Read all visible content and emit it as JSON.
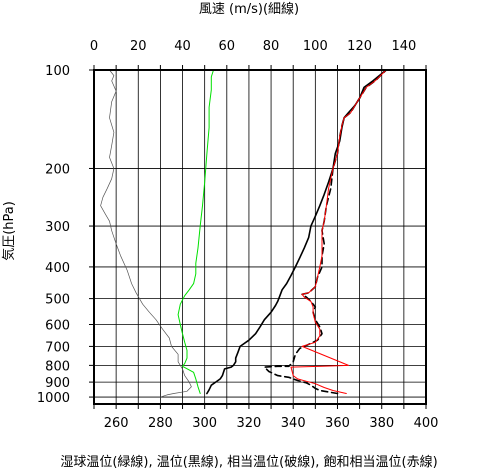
{
  "chart_data": {
    "type": "line",
    "top_axis_title": "風速 (m/s)(細線)",
    "left_axis_title": "気圧(hPa)",
    "bottom_axis_title": "湿球温位(緑線), 温位(黒線), 相当温位(破線), 飽和相当温位(赤線)",
    "x_bottom": {
      "min": 250,
      "max": 400,
      "ticks": [
        260,
        280,
        300,
        320,
        340,
        360,
        380,
        400
      ]
    },
    "x_top": {
      "min": 0,
      "max": 150,
      "ticks": [
        0,
        20,
        40,
        60,
        80,
        100,
        120,
        140
      ]
    },
    "y": {
      "scale": "log",
      "min": 100,
      "max": 1050,
      "ticks": [
        100,
        200,
        300,
        400,
        500,
        600,
        700,
        800,
        900,
        1000
      ]
    },
    "grid": true,
    "colors": {
      "wind": "#555555",
      "wet_bulb": "#00e000",
      "theta": "#000000",
      "theta_e": "#000000",
      "theta_es": "#ff0000"
    },
    "series": [
      {
        "key": "wind",
        "axis": "top",
        "style": "thin",
        "points": [
          [
            30,
            1000
          ],
          [
            33,
            985
          ],
          [
            36,
            975
          ],
          [
            42,
            960
          ],
          [
            44,
            930
          ],
          [
            43,
            900
          ],
          [
            41,
            860
          ],
          [
            40,
            820
          ],
          [
            38,
            780
          ],
          [
            38,
            740
          ],
          [
            35,
            700
          ],
          [
            34,
            660
          ],
          [
            31,
            620
          ],
          [
            28,
            580
          ],
          [
            25,
            550
          ],
          [
            22,
            520
          ],
          [
            19,
            480
          ],
          [
            17,
            450
          ],
          [
            15,
            410
          ],
          [
            12,
            370
          ],
          [
            10,
            340
          ],
          [
            8,
            310
          ],
          [
            7,
            290
          ],
          [
            5,
            275
          ],
          [
            3,
            260
          ],
          [
            4,
            245
          ],
          [
            6,
            230
          ],
          [
            8,
            215
          ],
          [
            9,
            200
          ],
          [
            7,
            185
          ],
          [
            8,
            170
          ],
          [
            9,
            155
          ],
          [
            7,
            140
          ],
          [
            8,
            125
          ],
          [
            10,
            116
          ],
          [
            8,
            108
          ],
          [
            9,
            104
          ],
          [
            7,
            100
          ]
        ]
      },
      {
        "key": "wet_bulb",
        "axis": "bottom",
        "style": "solid",
        "points": [
          [
            298,
            975
          ],
          [
            297,
            930
          ],
          [
            296,
            880
          ],
          [
            295,
            840
          ],
          [
            290,
            805
          ],
          [
            291,
            790
          ],
          [
            292,
            760
          ],
          [
            292,
            720
          ],
          [
            291,
            680
          ],
          [
            290,
            640
          ],
          [
            289,
            600
          ],
          [
            288,
            560
          ],
          [
            289,
            520
          ],
          [
            291,
            490
          ],
          [
            293,
            470
          ],
          [
            295,
            450
          ],
          [
            296,
            420
          ],
          [
            296,
            390
          ],
          [
            297,
            350
          ],
          [
            298,
            300
          ],
          [
            299,
            260
          ],
          [
            300,
            220
          ],
          [
            301,
            180
          ],
          [
            302,
            150
          ],
          [
            302,
            130
          ],
          [
            303,
            115
          ],
          [
            303,
            105
          ],
          [
            304,
            100
          ]
        ]
      },
      {
        "key": "theta",
        "axis": "bottom",
        "style": "solid",
        "points": [
          [
            301,
            975
          ],
          [
            302,
            950
          ],
          [
            303,
            920
          ],
          [
            305,
            900
          ],
          [
            307,
            880
          ],
          [
            308,
            860
          ],
          [
            309,
            820
          ],
          [
            312,
            810
          ],
          [
            313,
            800
          ],
          [
            314,
            780
          ],
          [
            314,
            760
          ],
          [
            315,
            730
          ],
          [
            316,
            700
          ],
          [
            320,
            670
          ],
          [
            323,
            640
          ],
          [
            325,
            610
          ],
          [
            327,
            580
          ],
          [
            330,
            550
          ],
          [
            332,
            525
          ],
          [
            333,
            510
          ],
          [
            334,
            490
          ],
          [
            335,
            470
          ],
          [
            337,
            450
          ],
          [
            339,
            425
          ],
          [
            341,
            400
          ],
          [
            343,
            375
          ],
          [
            345,
            350
          ],
          [
            347,
            325
          ],
          [
            348,
            300
          ],
          [
            350,
            280
          ],
          [
            352,
            260
          ],
          [
            354,
            240
          ],
          [
            356,
            220
          ],
          [
            358,
            200
          ],
          [
            359,
            180
          ],
          [
            361,
            165
          ],
          [
            362,
            150
          ],
          [
            363,
            140
          ],
          [
            365,
            135
          ],
          [
            368,
            128
          ],
          [
            370,
            122
          ],
          [
            372,
            113
          ],
          [
            376,
            108
          ],
          [
            382,
            100
          ]
        ]
      },
      {
        "key": "theta_e",
        "axis": "bottom",
        "style": "dashed",
        "points": [
          [
            360,
            975
          ],
          [
            352,
            955
          ],
          [
            350,
            940
          ],
          [
            348,
            920
          ],
          [
            346,
            905
          ],
          [
            342,
            890
          ],
          [
            338,
            870
          ],
          [
            333,
            860
          ],
          [
            329,
            835
          ],
          [
            327,
            810
          ],
          [
            333,
            805
          ],
          [
            338,
            805
          ],
          [
            340,
            780
          ],
          [
            341,
            740
          ],
          [
            343,
            710
          ],
          [
            345,
            700
          ],
          [
            351,
            670
          ],
          [
            353,
            640
          ],
          [
            352,
            610
          ],
          [
            350,
            580
          ],
          [
            349,
            550
          ],
          [
            350,
            530
          ],
          [
            348,
            510
          ],
          [
            346,
            495
          ],
          [
            344,
            485
          ],
          [
            347,
            480
          ],
          [
            350,
            460
          ],
          [
            351,
            430
          ],
          [
            353,
            400
          ],
          [
            353,
            370
          ],
          [
            354,
            340
          ],
          [
            353,
            310
          ],
          [
            354,
            290
          ],
          [
            355,
            260
          ],
          [
            357,
            230
          ],
          [
            358,
            200
          ],
          [
            360,
            180
          ],
          [
            361,
            160
          ],
          [
            362,
            148
          ],
          [
            363,
            140
          ],
          [
            366,
            135
          ],
          [
            368,
            128
          ],
          [
            370,
            122
          ],
          [
            373,
            113
          ],
          [
            377,
            108
          ],
          [
            382,
            100
          ]
        ]
      },
      {
        "key": "theta_es",
        "axis": "bottom",
        "style": "solid",
        "points": [
          [
            364,
            975
          ],
          [
            358,
            955
          ],
          [
            354,
            935
          ],
          [
            350,
            910
          ],
          [
            346,
            895
          ],
          [
            342,
            880
          ],
          [
            340,
            860
          ],
          [
            339,
            810
          ],
          [
            353,
            805
          ],
          [
            365,
            800
          ],
          [
            344,
            700
          ],
          [
            350,
            680
          ],
          [
            352,
            650
          ],
          [
            352,
            620
          ],
          [
            350,
            590
          ],
          [
            349,
            555
          ],
          [
            349,
            530
          ],
          [
            348,
            510
          ],
          [
            345,
            495
          ],
          [
            344,
            485
          ],
          [
            347,
            480
          ],
          [
            350,
            460
          ],
          [
            351,
            430
          ],
          [
            352,
            400
          ],
          [
            353,
            370
          ],
          [
            353,
            340
          ],
          [
            353,
            310
          ],
          [
            354,
            290
          ],
          [
            355,
            260
          ],
          [
            356,
            230
          ],
          [
            358,
            200
          ],
          [
            360,
            180
          ],
          [
            361,
            160
          ],
          [
            362,
            148
          ],
          [
            363,
            140
          ],
          [
            366,
            135
          ],
          [
            368,
            128
          ],
          [
            370,
            122
          ],
          [
            373,
            113
          ],
          [
            377,
            108
          ],
          [
            382,
            100
          ]
        ]
      }
    ]
  }
}
